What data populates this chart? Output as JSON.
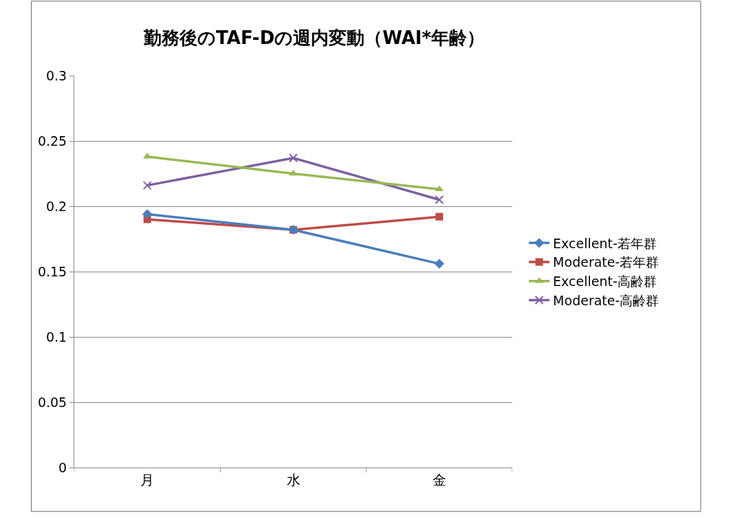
{
  "chart_data": {
    "type": "line",
    "title": "勤務後のTAF-Dの週内変動（WAI*年齢）",
    "categories": [
      "月",
      "水",
      "金"
    ],
    "series": [
      {
        "name": "Excellent-若年群",
        "color": "#4a7ebb",
        "marker": "diamond",
        "values": [
          0.194,
          0.182,
          0.156
        ]
      },
      {
        "name": "Moderate-若年群",
        "color": "#be4b48",
        "marker": "square",
        "values": [
          0.19,
          0.182,
          0.192
        ]
      },
      {
        "name": "Excellent-高齢群",
        "color": "#98b954",
        "marker": "triangle",
        "values": [
          0.238,
          0.225,
          0.213
        ]
      },
      {
        "name": "Moderate-高齢群",
        "color": "#7d60a0",
        "marker": "cross",
        "values": [
          0.216,
          0.237,
          0.205
        ]
      }
    ],
    "ylim": [
      0,
      0.3
    ],
    "yticks": [
      0,
      0.05,
      0.1,
      0.15,
      0.2,
      0.25,
      0.3
    ],
    "grid": "y",
    "legend": "right",
    "line_style": "solid"
  }
}
